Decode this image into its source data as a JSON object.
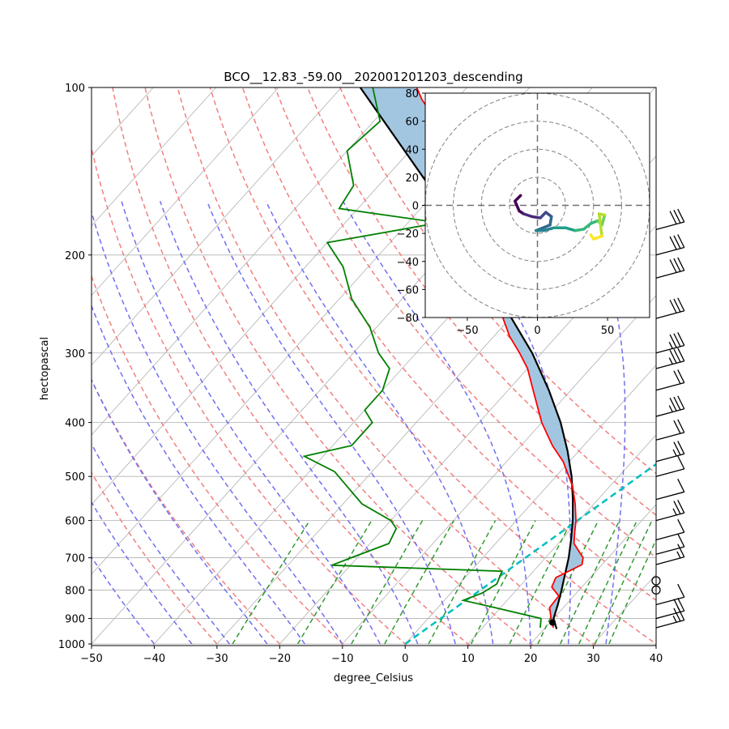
{
  "chart_data": {
    "type": "skew-t",
    "title": "BCO__12.83_-59.00__202001201203_descending",
    "xlabel": "degree_Celsius",
    "ylabel": "hectopascal",
    "xlim": [
      -50,
      40
    ],
    "ylim": [
      1000,
      100
    ],
    "x_ticks": [
      "−50",
      "−40",
      "−30",
      "−20",
      "−10",
      "0",
      "10",
      "20",
      "30",
      "40"
    ],
    "y_ticks": [
      "100",
      "200",
      "300",
      "400",
      "500",
      "600",
      "700",
      "800",
      "900",
      "1000"
    ],
    "colors": {
      "temperature": "#ff0000",
      "dewpoint": "#008000",
      "parcel": "#000000",
      "cape": "#a3c6e0",
      "dry_adiabat": "#f08080",
      "moist_adiabat": "#7070f0",
      "mixing_ratio": "#339933",
      "lcl": "#00bfbf"
    },
    "temperature_profile": [
      {
        "p": 935,
        "t": 21.3
      },
      {
        "p": 900,
        "t": 19.6
      },
      {
        "p": 860,
        "t": 17.8
      },
      {
        "p": 820,
        "t": 17.6
      },
      {
        "p": 790,
        "t": 15.2
      },
      {
        "p": 760,
        "t": 14.5
      },
      {
        "p": 720,
        "t": 16.8
      },
      {
        "p": 700,
        "t": 16.0
      },
      {
        "p": 660,
        "t": 12.5
      },
      {
        "p": 630,
        "t": 11.0
      },
      {
        "p": 600,
        "t": 9.5
      },
      {
        "p": 560,
        "t": 7.0
      },
      {
        "p": 520,
        "t": 4.0
      },
      {
        "p": 470,
        "t": -1.0
      },
      {
        "p": 440,
        "t": -5.0
      },
      {
        "p": 400,
        "t": -10.0
      },
      {
        "p": 350,
        "t": -16.0
      },
      {
        "p": 320,
        "t": -20.0
      },
      {
        "p": 300,
        "t": -23.5
      },
      {
        "p": 280,
        "t": -27.5
      },
      {
        "p": 250,
        "t": -33.0
      },
      {
        "p": 230,
        "t": -37.0
      },
      {
        "p": 200,
        "t": -43.5
      },
      {
        "p": 180,
        "t": -49.0
      },
      {
        "p": 160,
        "t": -55.0
      },
      {
        "p": 145,
        "t": -58.0
      },
      {
        "p": 130,
        "t": -63.0
      },
      {
        "p": 115,
        "t": -70.0
      },
      {
        "p": 105,
        "t": -75.5
      },
      {
        "p": 100,
        "t": -78.0
      }
    ],
    "dewpoint_profile": [
      {
        "p": 935,
        "t": 19.2
      },
      {
        "p": 900,
        "t": 18.0
      },
      {
        "p": 860,
        "t": 9.0
      },
      {
        "p": 835,
        "t": 3.0
      },
      {
        "p": 810,
        "t": 5.0
      },
      {
        "p": 780,
        "t": 6.0
      },
      {
        "p": 740,
        "t": 5.0
      },
      {
        "p": 722,
        "t": -23.0
      },
      {
        "p": 700,
        "t": -21.0
      },
      {
        "p": 660,
        "t": -17.0
      },
      {
        "p": 620,
        "t": -18.0
      },
      {
        "p": 600,
        "t": -20.0
      },
      {
        "p": 560,
        "t": -27.0
      },
      {
        "p": 520,
        "t": -32.0
      },
      {
        "p": 490,
        "t": -36.0
      },
      {
        "p": 460,
        "t": -43.0
      },
      {
        "p": 440,
        "t": -37.0
      },
      {
        "p": 400,
        "t": -37.0
      },
      {
        "p": 380,
        "t": -40.0
      },
      {
        "p": 350,
        "t": -40.0
      },
      {
        "p": 320,
        "t": -42.0
      },
      {
        "p": 300,
        "t": -46.0
      },
      {
        "p": 270,
        "t": -51.0
      },
      {
        "p": 240,
        "t": -58.0
      },
      {
        "p": 210,
        "t": -64.0
      },
      {
        "p": 190,
        "t": -70.0
      },
      {
        "p": 175,
        "t": -55.0
      },
      {
        "p": 165,
        "t": -73.0
      },
      {
        "p": 150,
        "t": -74.0
      },
      {
        "p": 130,
        "t": -80.0
      },
      {
        "p": 115,
        "t": -79.0
      },
      {
        "p": 100,
        "t": -85.0
      }
    ],
    "parcel_profile": [
      {
        "p": 940,
        "t": 22.0
      },
      {
        "p": 900,
        "t": 20.0
      },
      {
        "p": 850,
        "t": 18.7
      },
      {
        "p": 800,
        "t": 17.2
      },
      {
        "p": 750,
        "t": 15.5
      },
      {
        "p": 700,
        "t": 13.7
      },
      {
        "p": 650,
        "t": 11.5
      },
      {
        "p": 600,
        "t": 9.0
      },
      {
        "p": 550,
        "t": 6.0
      },
      {
        "p": 500,
        "t": 2.5
      },
      {
        "p": 450,
        "t": -1.8
      },
      {
        "p": 400,
        "t": -7.0
      },
      {
        "p": 350,
        "t": -13.5
      },
      {
        "p": 300,
        "t": -21.5
      },
      {
        "p": 250,
        "t": -32.0
      },
      {
        "p": 200,
        "t": -45.0
      },
      {
        "p": 150,
        "t": -62.0
      },
      {
        "p": 100,
        "t": -87.0
      }
    ],
    "surface_point": {
      "p": 915,
      "t": 20.4
    },
    "lcl_line": [
      {
        "p": 1000,
        "t": 0
      },
      {
        "p": 400,
        "t": 17.5
      }
    ],
    "wind_barbs": [
      {
        "p": 935,
        "spd": 17
      },
      {
        "p": 900,
        "spd": 22
      },
      {
        "p": 850,
        "spd": 12
      },
      {
        "p": 800,
        "spd": 0
      },
      {
        "p": 770,
        "spd": 0
      },
      {
        "p": 720,
        "spd": 8
      },
      {
        "p": 690,
        "spd": 12
      },
      {
        "p": 650,
        "spd": 13
      },
      {
        "p": 600,
        "spd": 16
      },
      {
        "p": 550,
        "spd": 14
      },
      {
        "p": 500,
        "spd": 12
      },
      {
        "p": 470,
        "spd": 17
      },
      {
        "p": 430,
        "spd": 22
      },
      {
        "p": 390,
        "spd": 27
      },
      {
        "p": 350,
        "spd": 22
      },
      {
        "p": 320,
        "spd": 25
      },
      {
        "p": 300,
        "spd": 25
      },
      {
        "p": 260,
        "spd": 30
      },
      {
        "p": 220,
        "spd": 30
      },
      {
        "p": 200,
        "spd": 30
      },
      {
        "p": 180,
        "spd": 30
      }
    ],
    "hodograph": {
      "ticks": [
        "−80",
        "−60",
        "−40",
        "−20",
        "0",
        "20",
        "40",
        "60",
        "80"
      ],
      "x_ticks": [
        "−50",
        "0",
        "50"
      ],
      "range": [
        -80,
        80
      ],
      "rings": [
        20,
        40,
        60,
        80
      ],
      "path": [
        {
          "u": -12,
          "v": 7
        },
        {
          "u": -16,
          "v": 3
        },
        {
          "u": -13,
          "v": -4
        },
        {
          "u": -10,
          "v": -6
        },
        {
          "u": -4,
          "v": -8
        },
        {
          "u": 2,
          "v": -9
        },
        {
          "u": 6,
          "v": -5
        },
        {
          "u": 10,
          "v": -8
        },
        {
          "u": 9,
          "v": -14
        },
        {
          "u": 4,
          "v": -16
        },
        {
          "u": -1,
          "v": -18
        },
        {
          "u": 4,
          "v": -18
        },
        {
          "u": 12,
          "v": -16
        },
        {
          "u": 20,
          "v": -16
        },
        {
          "u": 27,
          "v": -18
        },
        {
          "u": 33,
          "v": -17
        },
        {
          "u": 38,
          "v": -13
        },
        {
          "u": 43,
          "v": -11
        },
        {
          "u": 46,
          "v": -14
        },
        {
          "u": 48,
          "v": -7
        },
        {
          "u": 44,
          "v": -6
        },
        {
          "u": 46,
          "v": -22
        },
        {
          "u": 40,
          "v": -24
        },
        {
          "u": 38,
          "v": -21
        }
      ]
    }
  }
}
